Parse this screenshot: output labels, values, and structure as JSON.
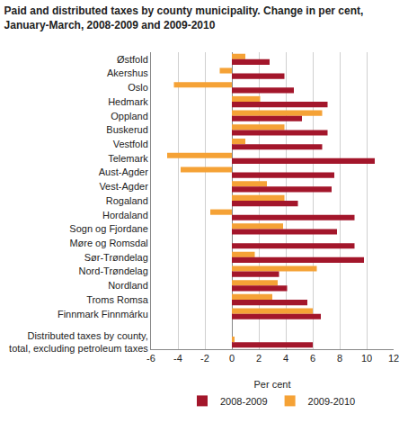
{
  "chart_data": {
    "type": "bar",
    "orientation": "horizontal",
    "title": "Paid and distributed taxes by county municipality. Change in per cent,\nJanuary-March, 2008-2009 and 2009-2010",
    "x_label": "Per cent",
    "categories": [
      "Østfold",
      "Akershus",
      "Oslo",
      "Hedmark",
      "Oppland",
      "Buskerud",
      "Vestfold",
      "Telemark",
      "Aust-Agder",
      "Vest-Agder",
      "Rogaland",
      "Hordaland",
      "Sogn og Fjordane",
      "Møre og Romsdal",
      "Sør-Trøndelag",
      "Nord-Trøndelag",
      "Nordland",
      "Troms Romsa",
      "Finnmark Finnmárku",
      null,
      "Distributed taxes by county,\ntotal, excluding petroleum taxes"
    ],
    "series": [
      {
        "name": "2008-2009",
        "color": "#a3162b",
        "values": [
          2.8,
          3.9,
          4.6,
          7.1,
          5.2,
          7.1,
          6.7,
          10.6,
          7.6,
          7.4,
          4.9,
          9.1,
          7.8,
          9.1,
          9.8,
          3.5,
          4.1,
          5.6,
          6.6,
          null,
          6.0
        ]
      },
      {
        "name": "2009-2010",
        "color": "#f5a236",
        "values": [
          1.0,
          -0.9,
          -4.3,
          2.1,
          6.7,
          3.9,
          1.0,
          -4.8,
          -3.8,
          2.6,
          3.9,
          -1.6,
          3.8,
          0.0,
          1.7,
          6.3,
          3.4,
          3.0,
          6.0,
          null,
          0.2
        ]
      }
    ],
    "xlim": [
      -6,
      12
    ],
    "xticks": [
      -6,
      -4,
      -2,
      0,
      2,
      4,
      6,
      8,
      10,
      12
    ],
    "grid": true,
    "legend": "bottom"
  }
}
